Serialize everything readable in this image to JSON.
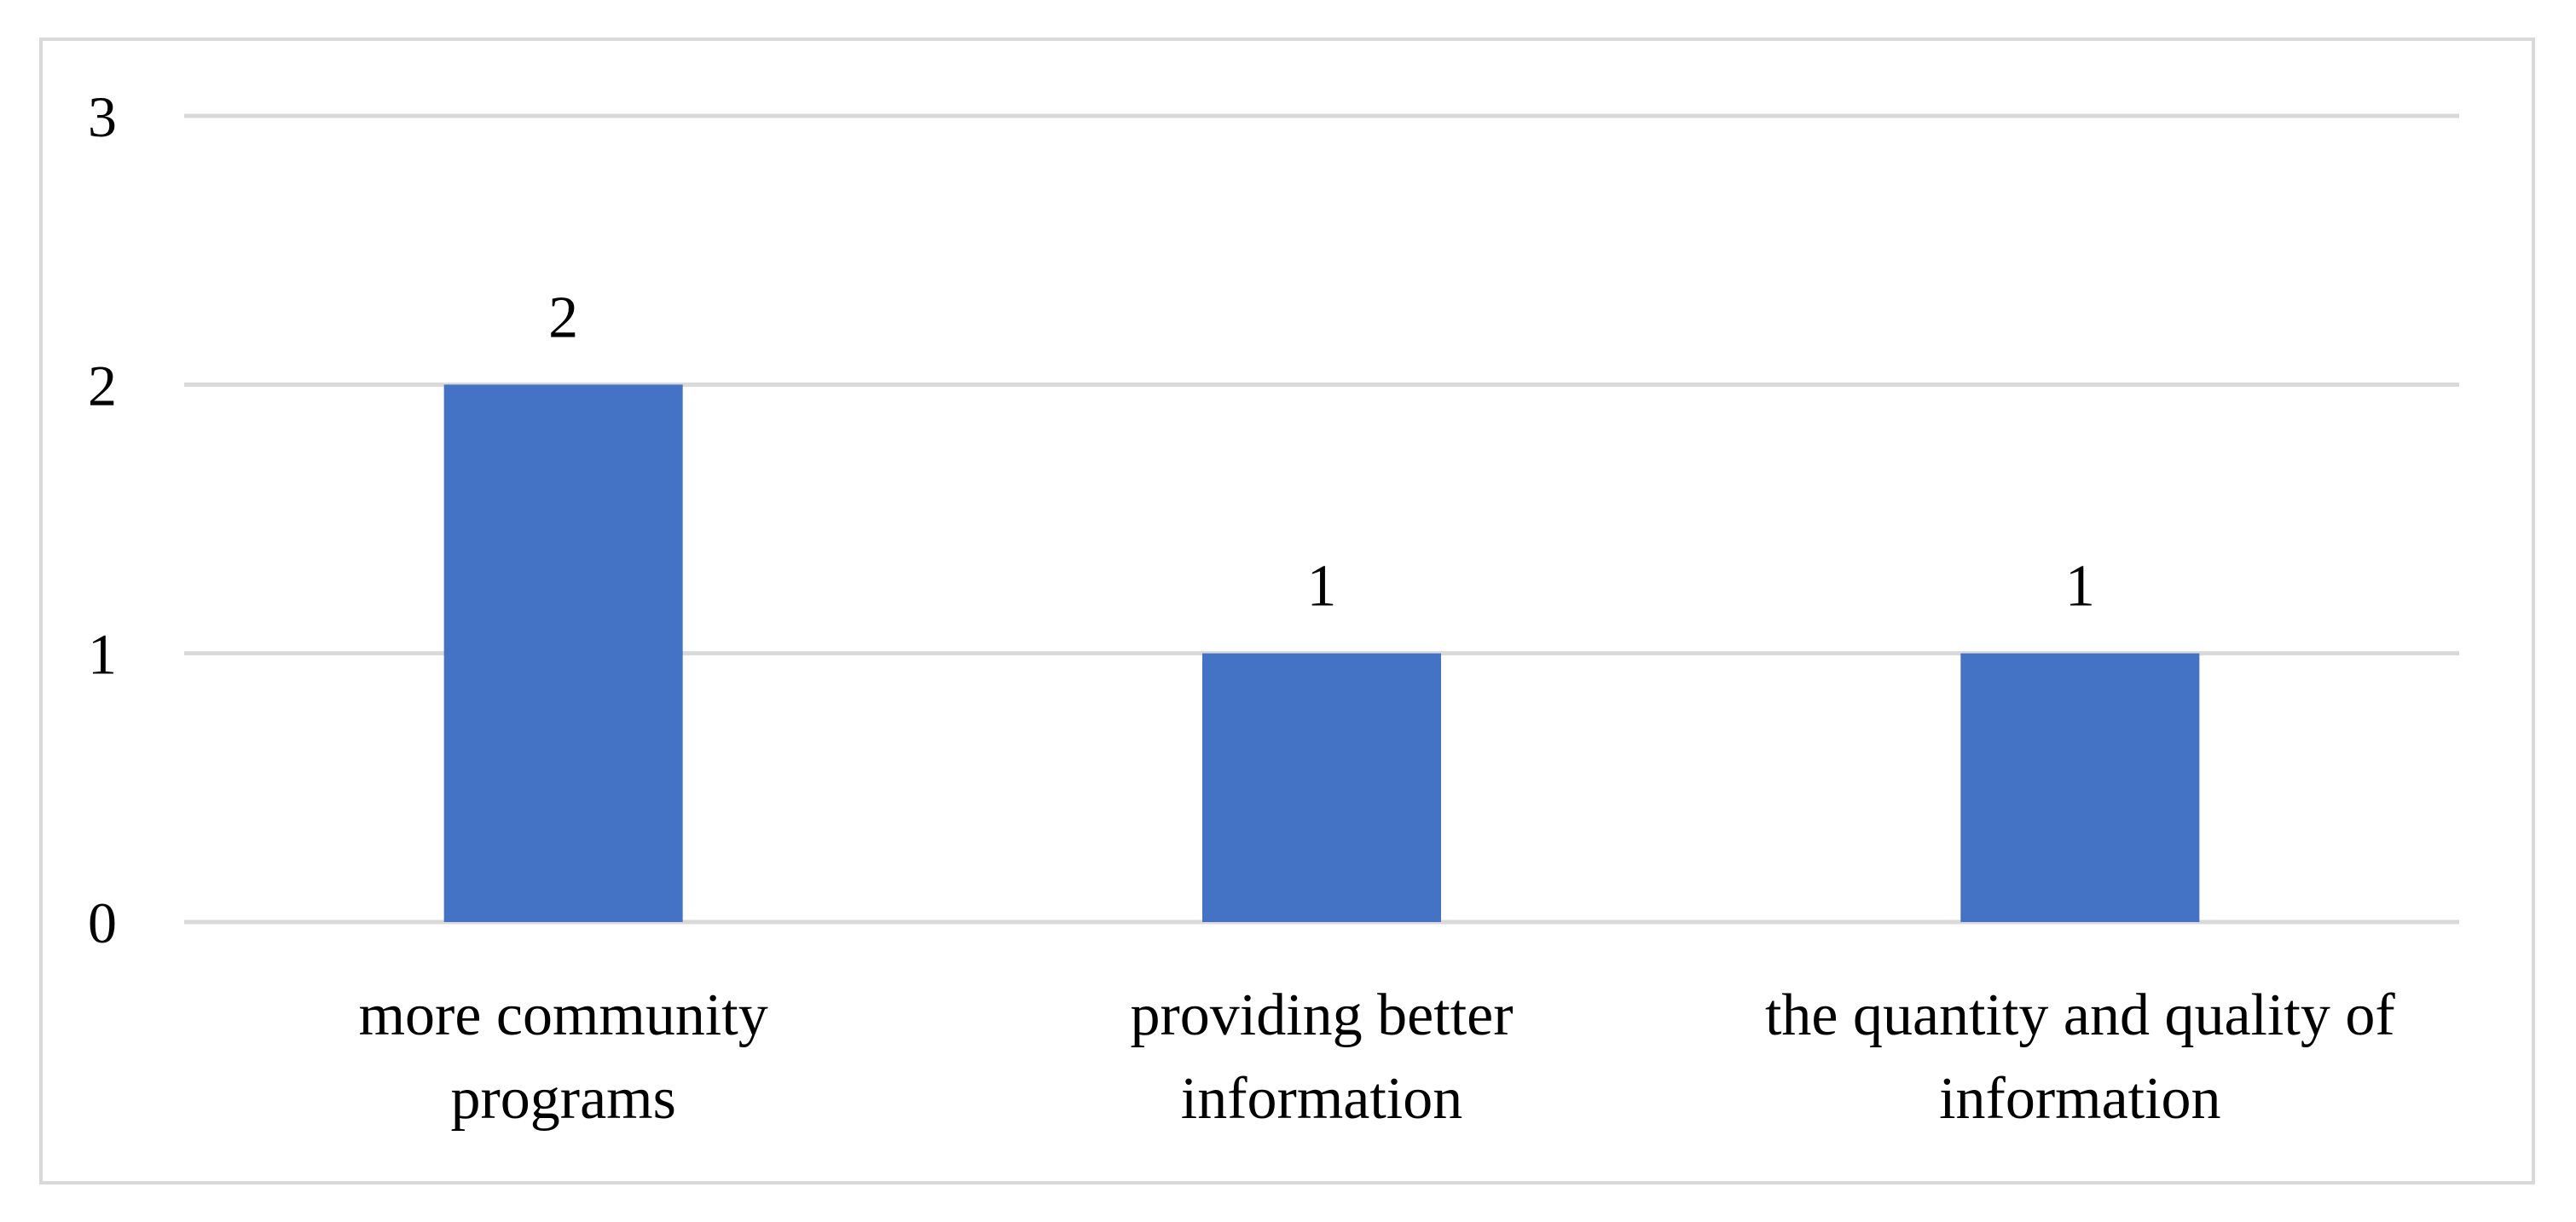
{
  "chart_data": {
    "type": "bar",
    "title": "",
    "xlabel": "",
    "ylabel": "",
    "categories": [
      [
        "more community",
        "programs"
      ],
      [
        "providing better",
        "information"
      ],
      [
        "the quantity and quality of",
        "information"
      ]
    ],
    "values": [
      2,
      1,
      1
    ],
    "data_labels": [
      "2",
      "1",
      "1"
    ],
    "ylim": [
      0,
      3
    ],
    "yticks": [
      0,
      1,
      2,
      3
    ],
    "grid": true,
    "legend": "none",
    "colors": {
      "bar": "#4472c4",
      "grid": "#d9d9d9",
      "border": "#d9d9d9"
    }
  }
}
